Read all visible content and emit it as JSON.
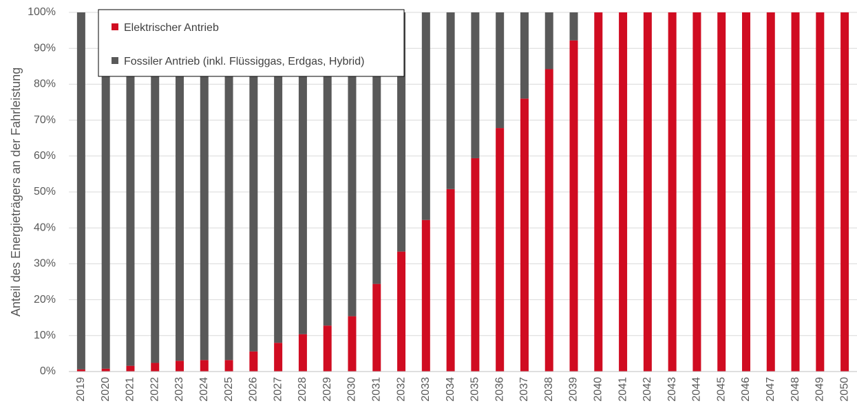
{
  "chart_data": {
    "type": "bar",
    "stacked": true,
    "categories": [
      "2019",
      "2020",
      "2021",
      "2022",
      "2023",
      "2024",
      "2025",
      "2026",
      "2027",
      "2028",
      "2029",
      "2030",
      "2031",
      "2032",
      "2033",
      "2034",
      "2035",
      "2036",
      "2037",
      "2038",
      "2039",
      "2040",
      "2041",
      "2042",
      "2043",
      "2044",
      "2045",
      "2046",
      "2047",
      "2048",
      "2049",
      "2050"
    ],
    "series": [
      {
        "name": "Elektrischer Antrieb",
        "color": "#d00c21",
        "values": [
          0.6,
          0.8,
          1.6,
          2.4,
          3,
          3.2,
          3.2,
          5.6,
          8,
          10.4,
          12.8,
          15.4,
          24.4,
          33.4,
          42.2,
          50.8,
          59.4,
          67.8,
          76,
          84.2,
          92.2,
          100,
          100,
          100,
          100,
          100,
          100,
          100,
          100,
          100,
          100,
          100
        ]
      },
      {
        "name": "Fossiler Antrieb (inkl. Flüssiggas, Erdgas, Hybrid)",
        "color": "#595959",
        "values": [
          99.4,
          99.2,
          98.4,
          97.6,
          97,
          96.8,
          96.8,
          94.4,
          92,
          89.6,
          87.2,
          84.6,
          75.6,
          66.6,
          57.8,
          49.2,
          40.6,
          32.2,
          24,
          15.8,
          7.8,
          0,
          0,
          0,
          0,
          0,
          0,
          0,
          0,
          0,
          0,
          0
        ]
      }
    ],
    "ylabel": "Anteil des Energieträgers an der Fahrleistung",
    "ylim": [
      0,
      100
    ],
    "yticks": [
      "0%",
      "10%",
      "20%",
      "30%",
      "40%",
      "50%",
      "60%",
      "70%",
      "80%",
      "90%",
      "100%"
    ],
    "grid": true,
    "legend_position": "top-left"
  }
}
